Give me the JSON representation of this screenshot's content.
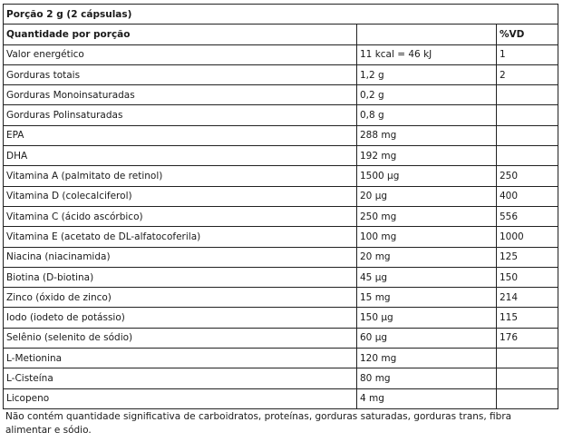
{
  "portion": "Porção 2 g (2 cápsulas)",
  "header": {
    "name": "Quantidade por porção",
    "amount": "",
    "vd": "%VD"
  },
  "rows": [
    {
      "name": "Valor energético",
      "amount": "11 kcal = 46 kJ",
      "vd": "1"
    },
    {
      "name": "Gorduras totais",
      "amount": "1,2 g",
      "vd": "2"
    },
    {
      "name": "Gorduras Monoinsaturadas",
      "amount": "0,2 g",
      "vd": ""
    },
    {
      "name": "Gorduras Polinsaturadas",
      "amount": "0,8 g",
      "vd": ""
    },
    {
      "name": "EPA",
      "amount": "288 mg",
      "vd": ""
    },
    {
      "name": "DHA",
      "amount": "192 mg",
      "vd": ""
    },
    {
      "name": "Vitamina A (palmitato de retinol)",
      "amount": "1500 µg",
      "vd": "250"
    },
    {
      "name": "Vitamina D (colecalciferol)",
      "amount": "20 µg",
      "vd": "400"
    },
    {
      "name": "Vitamina C (ácido ascórbico)",
      "amount": "250 mg",
      "vd": "556"
    },
    {
      "name": "Vitamina E (acetato de DL-alfatocoferila)",
      "amount": "100 mg",
      "vd": "1000"
    },
    {
      "name": "Niacina (niacinamida)",
      "amount": "20 mg",
      "vd": "125"
    },
    {
      "name": "Biotina (D-biotina)",
      "amount": "45 µg",
      "vd": "150"
    },
    {
      "name": "Zinco (óxido de zinco)",
      "amount": "15 mg",
      "vd": "214"
    },
    {
      "name": "Iodo (iodeto de potássio)",
      "amount": "150 µg",
      "vd": "115"
    },
    {
      "name": "Selênio (selenito de sódio)",
      "amount": "60 µg",
      "vd": "176"
    },
    {
      "name": "L-Metionina",
      "amount": "120 mg",
      "vd": ""
    },
    {
      "name": "L-Cisteína",
      "amount": "80 mg",
      "vd": ""
    },
    {
      "name": "Licopeno",
      "amount": "4 mg",
      "vd": ""
    }
  ],
  "footnote": "Não contém quantidade significativa de carboidratos, proteínas, gorduras saturadas, gorduras trans, fibra alimentar e sódio."
}
